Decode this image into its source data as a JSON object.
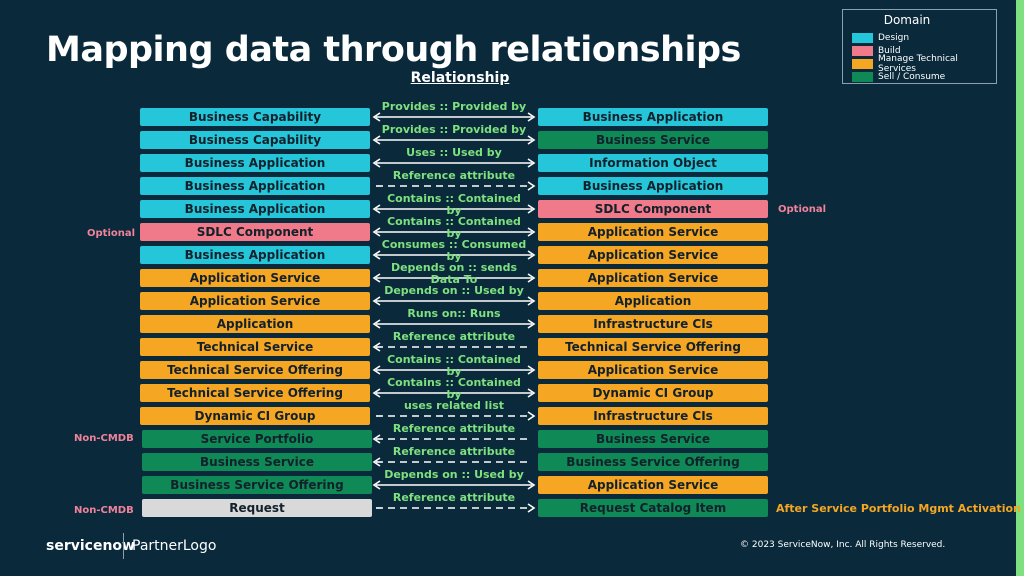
{
  "title": "Mapping data through relationships",
  "relationship_header": "Relationship",
  "colors": {
    "background": "#0a2a3c",
    "design": "#26c6da",
    "build": "#f07a8a",
    "manage": "#f5a623",
    "sell": "#0f8a56",
    "request": "#d9d9d9",
    "label": "#7ee07e"
  },
  "legend": {
    "title": "Domain",
    "items": [
      {
        "label": "Design",
        "color": "#26c6da"
      },
      {
        "label": "Build",
        "color": "#f07a8a"
      },
      {
        "label": "Manage Technical Services",
        "color": "#f5a623"
      },
      {
        "label": "Sell / Consume",
        "color": "#0f8a56"
      }
    ]
  },
  "rows": [
    {
      "left": "Business Capability",
      "left_color": "#26c6da",
      "relationship": "Provides :: Provided by",
      "style": "solid",
      "right": "Business Application",
      "right_color": "#26c6da"
    },
    {
      "left": "Business Capability",
      "left_color": "#26c6da",
      "relationship": "Provides :: Provided by",
      "style": "solid",
      "right": "Business Service",
      "right_color": "#0f8a56"
    },
    {
      "left": "Business Application",
      "left_color": "#26c6da",
      "relationship": "Uses :: Used by",
      "style": "solid",
      "right": "Information Object",
      "right_color": "#26c6da"
    },
    {
      "left": "Business Application",
      "left_color": "#26c6da",
      "relationship": "Reference attribute",
      "style": "dashed-right",
      "right": "Business Application",
      "right_color": "#26c6da"
    },
    {
      "left": "Business Application",
      "left_color": "#26c6da",
      "relationship": "Contains :: Contained by",
      "style": "solid",
      "right": "SDLC Component",
      "right_color": "#f07a8a"
    },
    {
      "left": "SDLC Component",
      "left_color": "#f07a8a",
      "relationship": "Contains :: Contained by",
      "style": "solid",
      "right": "Application Service",
      "right_color": "#f5a623"
    },
    {
      "left": "Business Application",
      "left_color": "#26c6da",
      "relationship": "Consumes :: Consumed by",
      "style": "solid",
      "right": "Application Service",
      "right_color": "#f5a623"
    },
    {
      "left": "Application Service",
      "left_color": "#f5a623",
      "relationship": "Depends on :: sends Data To",
      "style": "solid",
      "right": "Application Service",
      "right_color": "#f5a623"
    },
    {
      "left": "Application Service",
      "left_color": "#f5a623",
      "relationship": "Depends on :: Used by",
      "style": "solid",
      "right": "Application",
      "right_color": "#f5a623"
    },
    {
      "left": "Application",
      "left_color": "#f5a623",
      "relationship": "Runs on:: Runs",
      "style": "solid",
      "right": "Infrastructure CIs",
      "right_color": "#f5a623"
    },
    {
      "left": "Technical Service",
      "left_color": "#f5a623",
      "relationship": "Reference attribute",
      "style": "dashed-left",
      "right": "Technical Service Offering",
      "right_color": "#f5a623"
    },
    {
      "left": "Technical Service Offering",
      "left_color": "#f5a623",
      "relationship": "Contains :: Contained by",
      "style": "solid",
      "right": "Application Service",
      "right_color": "#f5a623"
    },
    {
      "left": "Technical Service Offering",
      "left_color": "#f5a623",
      "relationship": "Contains :: Contained by",
      "style": "solid",
      "right": "Dynamic CI Group",
      "right_color": "#f5a623"
    },
    {
      "left": "Dynamic CI Group",
      "left_color": "#f5a623",
      "relationship": "uses related list",
      "style": "dashed-right",
      "right": "Infrastructure CIs",
      "right_color": "#f5a623"
    },
    {
      "left": "Service Portfolio",
      "left_color": "#0f8a56",
      "relationship": "Reference attribute",
      "style": "dashed-left",
      "right": "Business Service",
      "right_color": "#0f8a56"
    },
    {
      "left": "Business Service",
      "left_color": "#0f8a56",
      "relationship": "Reference attribute",
      "style": "dashed-left",
      "right": "Business Service Offering",
      "right_color": "#0f8a56"
    },
    {
      "left": "Business Service Offering",
      "left_color": "#0f8a56",
      "relationship": "Depends on :: Used by",
      "style": "solid",
      "right": "Application Service",
      "right_color": "#f5a623"
    },
    {
      "left": "Request",
      "left_color": "#d9d9d9",
      "relationship": "Reference attribute",
      "style": "dashed-right",
      "right": "Request Catalog Item",
      "right_color": "#0f8a56"
    }
  ],
  "side_labels": {
    "sdlc_right": "Optional",
    "sdlc_left": "Optional",
    "service_portfolio": "Non-CMDB",
    "request": "Non-CMDB",
    "after_activation": "After Service Portfolio Mgmt Activation"
  },
  "footer": {
    "logo": "servicenow",
    "partner": "PartnerLogo",
    "copyright": "© 2023 ServiceNow, Inc. All Rights Reserved."
  }
}
